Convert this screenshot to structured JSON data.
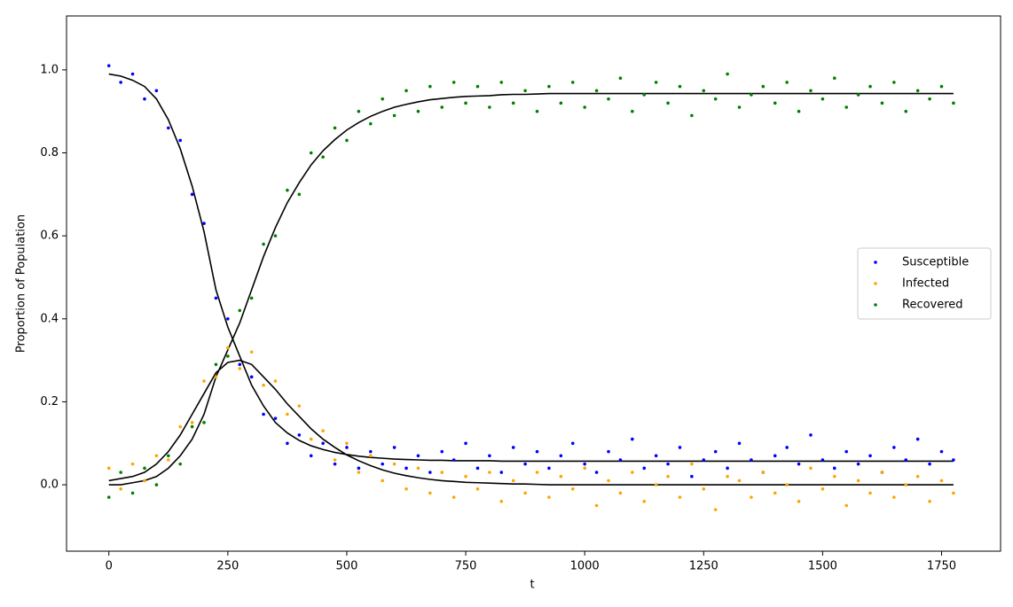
{
  "chart_data": {
    "type": "scatter",
    "xlabel": "t",
    "ylabel": "Proportion of Population",
    "x": [
      0,
      25,
      50,
      75,
      100,
      125,
      150,
      175,
      200,
      225,
      250,
      275,
      300,
      325,
      350,
      375,
      400,
      425,
      450,
      475,
      500,
      525,
      550,
      575,
      600,
      625,
      650,
      675,
      700,
      725,
      750,
      775,
      800,
      825,
      850,
      875,
      900,
      925,
      950,
      975,
      1000,
      1025,
      1050,
      1075,
      1100,
      1125,
      1150,
      1175,
      1200,
      1225,
      1250,
      1275,
      1300,
      1325,
      1350,
      1375,
      1400,
      1425,
      1450,
      1475,
      1500,
      1525,
      1550,
      1575,
      1600,
      1625,
      1650,
      1675,
      1700,
      1725,
      1750,
      1775
    ],
    "series": [
      {
        "name": "Susceptible",
        "color": "#0000ff",
        "values": [
          1.01,
          0.97,
          0.99,
          0.93,
          0.95,
          0.86,
          0.83,
          0.7,
          0.63,
          0.45,
          0.4,
          0.29,
          0.26,
          0.17,
          0.16,
          0.1,
          0.12,
          0.07,
          0.1,
          0.05,
          0.09,
          0.04,
          0.08,
          0.05,
          0.09,
          0.04,
          0.07,
          0.03,
          0.08,
          0.06,
          0.1,
          0.04,
          0.07,
          0.03,
          0.09,
          0.05,
          0.08,
          0.04,
          0.07,
          0.1,
          0.05,
          0.03,
          0.08,
          0.06,
          0.11,
          0.04,
          0.07,
          0.05,
          0.09,
          0.02,
          0.06,
          0.08,
          0.04,
          0.1,
          0.06,
          0.03,
          0.07,
          0.09,
          0.05,
          0.12,
          0.06,
          0.04,
          0.08,
          0.05,
          0.07,
          0.03,
          0.09,
          0.06,
          0.11,
          0.05,
          0.08,
          0.06
        ]
      },
      {
        "name": "Infected",
        "color": "#ffa500",
        "values": [
          0.04,
          -0.01,
          0.05,
          0.01,
          0.07,
          0.06,
          0.14,
          0.15,
          0.25,
          0.26,
          0.33,
          0.28,
          0.32,
          0.24,
          0.25,
          0.17,
          0.19,
          0.11,
          0.13,
          0.06,
          0.1,
          0.03,
          0.07,
          0.01,
          0.05,
          -0.01,
          0.04,
          -0.02,
          0.03,
          -0.03,
          0.02,
          -0.01,
          0.03,
          -0.04,
          0.01,
          -0.02,
          0.03,
          -0.03,
          0.02,
          -0.01,
          0.04,
          -0.05,
          0.01,
          -0.02,
          0.03,
          -0.04,
          0.0,
          0.02,
          -0.03,
          0.05,
          -0.01,
          -0.06,
          0.02,
          0.01,
          -0.03,
          0.03,
          -0.02,
          0.0,
          -0.04,
          0.04,
          -0.01,
          0.02,
          -0.05,
          0.01,
          -0.02,
          0.03,
          -0.03,
          0.0,
          0.02,
          -0.04,
          0.01,
          -0.02
        ]
      },
      {
        "name": "Recovered",
        "color": "#008000",
        "values": [
          -0.03,
          0.03,
          -0.02,
          0.04,
          0.0,
          0.07,
          0.05,
          0.14,
          0.15,
          0.29,
          0.31,
          0.42,
          0.45,
          0.58,
          0.6,
          0.71,
          0.7,
          0.8,
          0.79,
          0.86,
          0.83,
          0.9,
          0.87,
          0.93,
          0.89,
          0.95,
          0.9,
          0.96,
          0.91,
          0.97,
          0.92,
          0.96,
          0.91,
          0.97,
          0.92,
          0.95,
          0.9,
          0.96,
          0.92,
          0.97,
          0.91,
          0.95,
          0.93,
          0.98,
          0.9,
          0.94,
          0.97,
          0.92,
          0.96,
          0.89,
          0.95,
          0.93,
          0.99,
          0.91,
          0.94,
          0.96,
          0.92,
          0.97,
          0.9,
          0.95,
          0.93,
          0.98,
          0.91,
          0.94,
          0.96,
          0.92,
          0.97,
          0.9,
          0.95,
          0.93,
          0.96,
          0.92
        ]
      },
      {
        "type": "line",
        "color": "#000000",
        "values": [
          0.99,
          0.985,
          0.975,
          0.96,
          0.93,
          0.88,
          0.81,
          0.72,
          0.61,
          0.47,
          0.38,
          0.31,
          0.24,
          0.19,
          0.15,
          0.125,
          0.107,
          0.094,
          0.085,
          0.078,
          0.073,
          0.069,
          0.066,
          0.064,
          0.062,
          0.061,
          0.06,
          0.059,
          0.059,
          0.058,
          0.058,
          0.058,
          0.058,
          0.057,
          0.057,
          0.057,
          0.057,
          0.057,
          0.057,
          0.057,
          0.057,
          0.057,
          0.057,
          0.057,
          0.057,
          0.057,
          0.057,
          0.057,
          0.057,
          0.057,
          0.057,
          0.057,
          0.057,
          0.057,
          0.057,
          0.057,
          0.057,
          0.057,
          0.057,
          0.057,
          0.057,
          0.057,
          0.057,
          0.057,
          0.057,
          0.057,
          0.057,
          0.057,
          0.057,
          0.057,
          0.057,
          0.057
        ]
      },
      {
        "type": "line",
        "color": "#000000",
        "values": [
          0.01,
          0.015,
          0.02,
          0.03,
          0.05,
          0.08,
          0.12,
          0.17,
          0.22,
          0.27,
          0.295,
          0.3,
          0.29,
          0.26,
          0.23,
          0.195,
          0.165,
          0.135,
          0.11,
          0.09,
          0.072,
          0.058,
          0.046,
          0.036,
          0.028,
          0.022,
          0.017,
          0.013,
          0.01,
          0.008,
          0.006,
          0.005,
          0.004,
          0.003,
          0.002,
          0.002,
          0.001,
          0,
          0,
          0,
          0,
          0,
          0,
          0,
          0,
          0,
          0,
          0,
          0,
          0,
          0,
          0,
          0,
          0,
          0,
          0,
          0,
          0,
          0,
          0,
          0,
          0,
          0,
          0,
          0,
          0,
          0,
          0,
          0,
          0,
          0,
          0
        ]
      },
      {
        "type": "line",
        "color": "#000000",
        "values": [
          0,
          0,
          0.005,
          0.01,
          0.02,
          0.04,
          0.07,
          0.11,
          0.17,
          0.26,
          0.325,
          0.39,
          0.47,
          0.55,
          0.62,
          0.68,
          0.728,
          0.771,
          0.805,
          0.832,
          0.855,
          0.873,
          0.888,
          0.9,
          0.91,
          0.917,
          0.923,
          0.928,
          0.931,
          0.934,
          0.936,
          0.937,
          0.938,
          0.94,
          0.941,
          0.941,
          0.942,
          0.943,
          0.943,
          0.943,
          0.943,
          0.943,
          0.943,
          0.943,
          0.943,
          0.943,
          0.943,
          0.943,
          0.943,
          0.943,
          0.943,
          0.943,
          0.943,
          0.943,
          0.943,
          0.943,
          0.943,
          0.943,
          0.943,
          0.943,
          0.943,
          0.943,
          0.943,
          0.943,
          0.943,
          0.943,
          0.943,
          0.943,
          0.943,
          0.943,
          0.943,
          0.943
        ]
      }
    ],
    "xlim": [
      -89,
      1874
    ],
    "xticks": [
      0,
      250,
      500,
      750,
      1000,
      1250,
      1500,
      1750
    ],
    "ylim": [
      -0.16,
      1.13
    ],
    "yticks": [
      {
        "value": 0,
        "label": "0.0"
      },
      0.2,
      0.4,
      0.6,
      0.8,
      {
        "value": 1,
        "label": "1.0"
      }
    ],
    "grid": false,
    "legend": "center right"
  }
}
